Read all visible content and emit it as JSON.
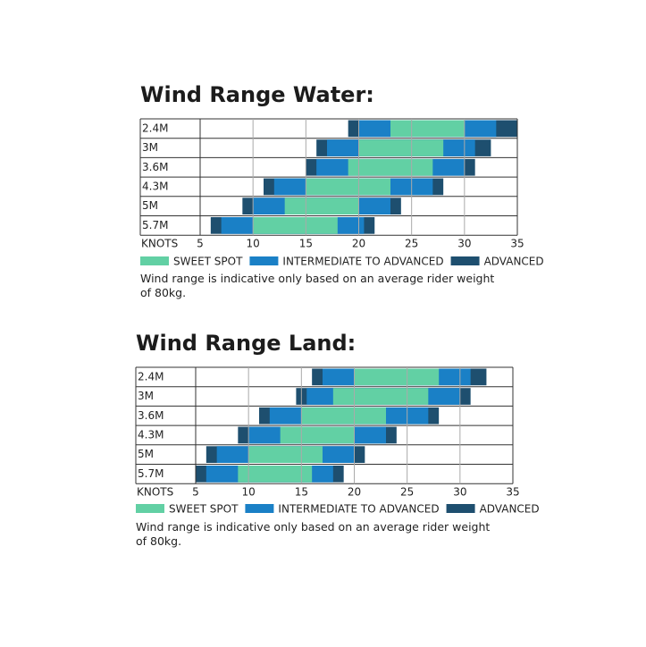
{
  "chart_data": [
    {
      "type": "range",
      "title": "Wind Range Water:",
      "x_label": "KNOTS",
      "categories": [
        "2.4M",
        "3M",
        "3.6M",
        "4.3M",
        "5M",
        "5.7M"
      ],
      "xlim": [
        5,
        35
      ],
      "xticks": [
        5,
        10,
        15,
        20,
        25,
        30,
        35
      ],
      "grid": true,
      "series": [
        {
          "name": "SWEET SPOT",
          "color": "#62d0a4",
          "values": [
            [
              23,
              30
            ],
            [
              20,
              28
            ],
            [
              19,
              27
            ],
            [
              15,
              23
            ],
            [
              13,
              20
            ],
            [
              10,
              18
            ]
          ]
        },
        {
          "name": "INTERMEDIATE TO ADVANCED",
          "color": "#1a80c6",
          "values": [
            [
              20,
              33
            ],
            [
              17,
              31
            ],
            [
              16,
              30
            ],
            [
              12,
              27
            ],
            [
              10,
              23
            ],
            [
              7,
              20.5
            ]
          ]
        },
        {
          "name": "ADVANCED",
          "color": "#1e4f6f",
          "values": [
            [
              19,
              35
            ],
            [
              16,
              32.5
            ],
            [
              15,
              31
            ],
            [
              11,
              28
            ],
            [
              9,
              24
            ],
            [
              6,
              21.5
            ]
          ]
        }
      ],
      "note": "Wind range is indicative only based on an average rider weight of 80kg."
    },
    {
      "type": "range",
      "title": "Wind Range Land:",
      "x_label": "KNOTS",
      "categories": [
        "2.4M",
        "3M",
        "3.6M",
        "4.3M",
        "5M",
        "5.7M"
      ],
      "xlim": [
        5,
        35
      ],
      "xticks": [
        5,
        10,
        15,
        20,
        25,
        30,
        35
      ],
      "grid": true,
      "series": [
        {
          "name": "SWEET SPOT",
          "color": "#62d0a4",
          "values": [
            [
              20,
              28
            ],
            [
              18,
              27
            ],
            [
              15,
              23
            ],
            [
              13,
              20
            ],
            [
              10,
              17
            ],
            [
              9,
              16
            ]
          ]
        },
        {
          "name": "INTERMEDIATE TO ADVANCED",
          "color": "#1a80c6",
          "values": [
            [
              17,
              31
            ],
            [
              15.5,
              30
            ],
            [
              12,
              27
            ],
            [
              10,
              23
            ],
            [
              7,
              20
            ],
            [
              6,
              18
            ]
          ]
        },
        {
          "name": "ADVANCED",
          "color": "#1e4f6f",
          "values": [
            [
              16,
              32.5
            ],
            [
              14.5,
              31
            ],
            [
              11,
              28
            ],
            [
              9,
              24
            ],
            [
              6,
              21
            ],
            [
              5,
              19
            ]
          ]
        }
      ],
      "note": "Wind range is indicative only based on an average rider weight of 80kg."
    }
  ]
}
